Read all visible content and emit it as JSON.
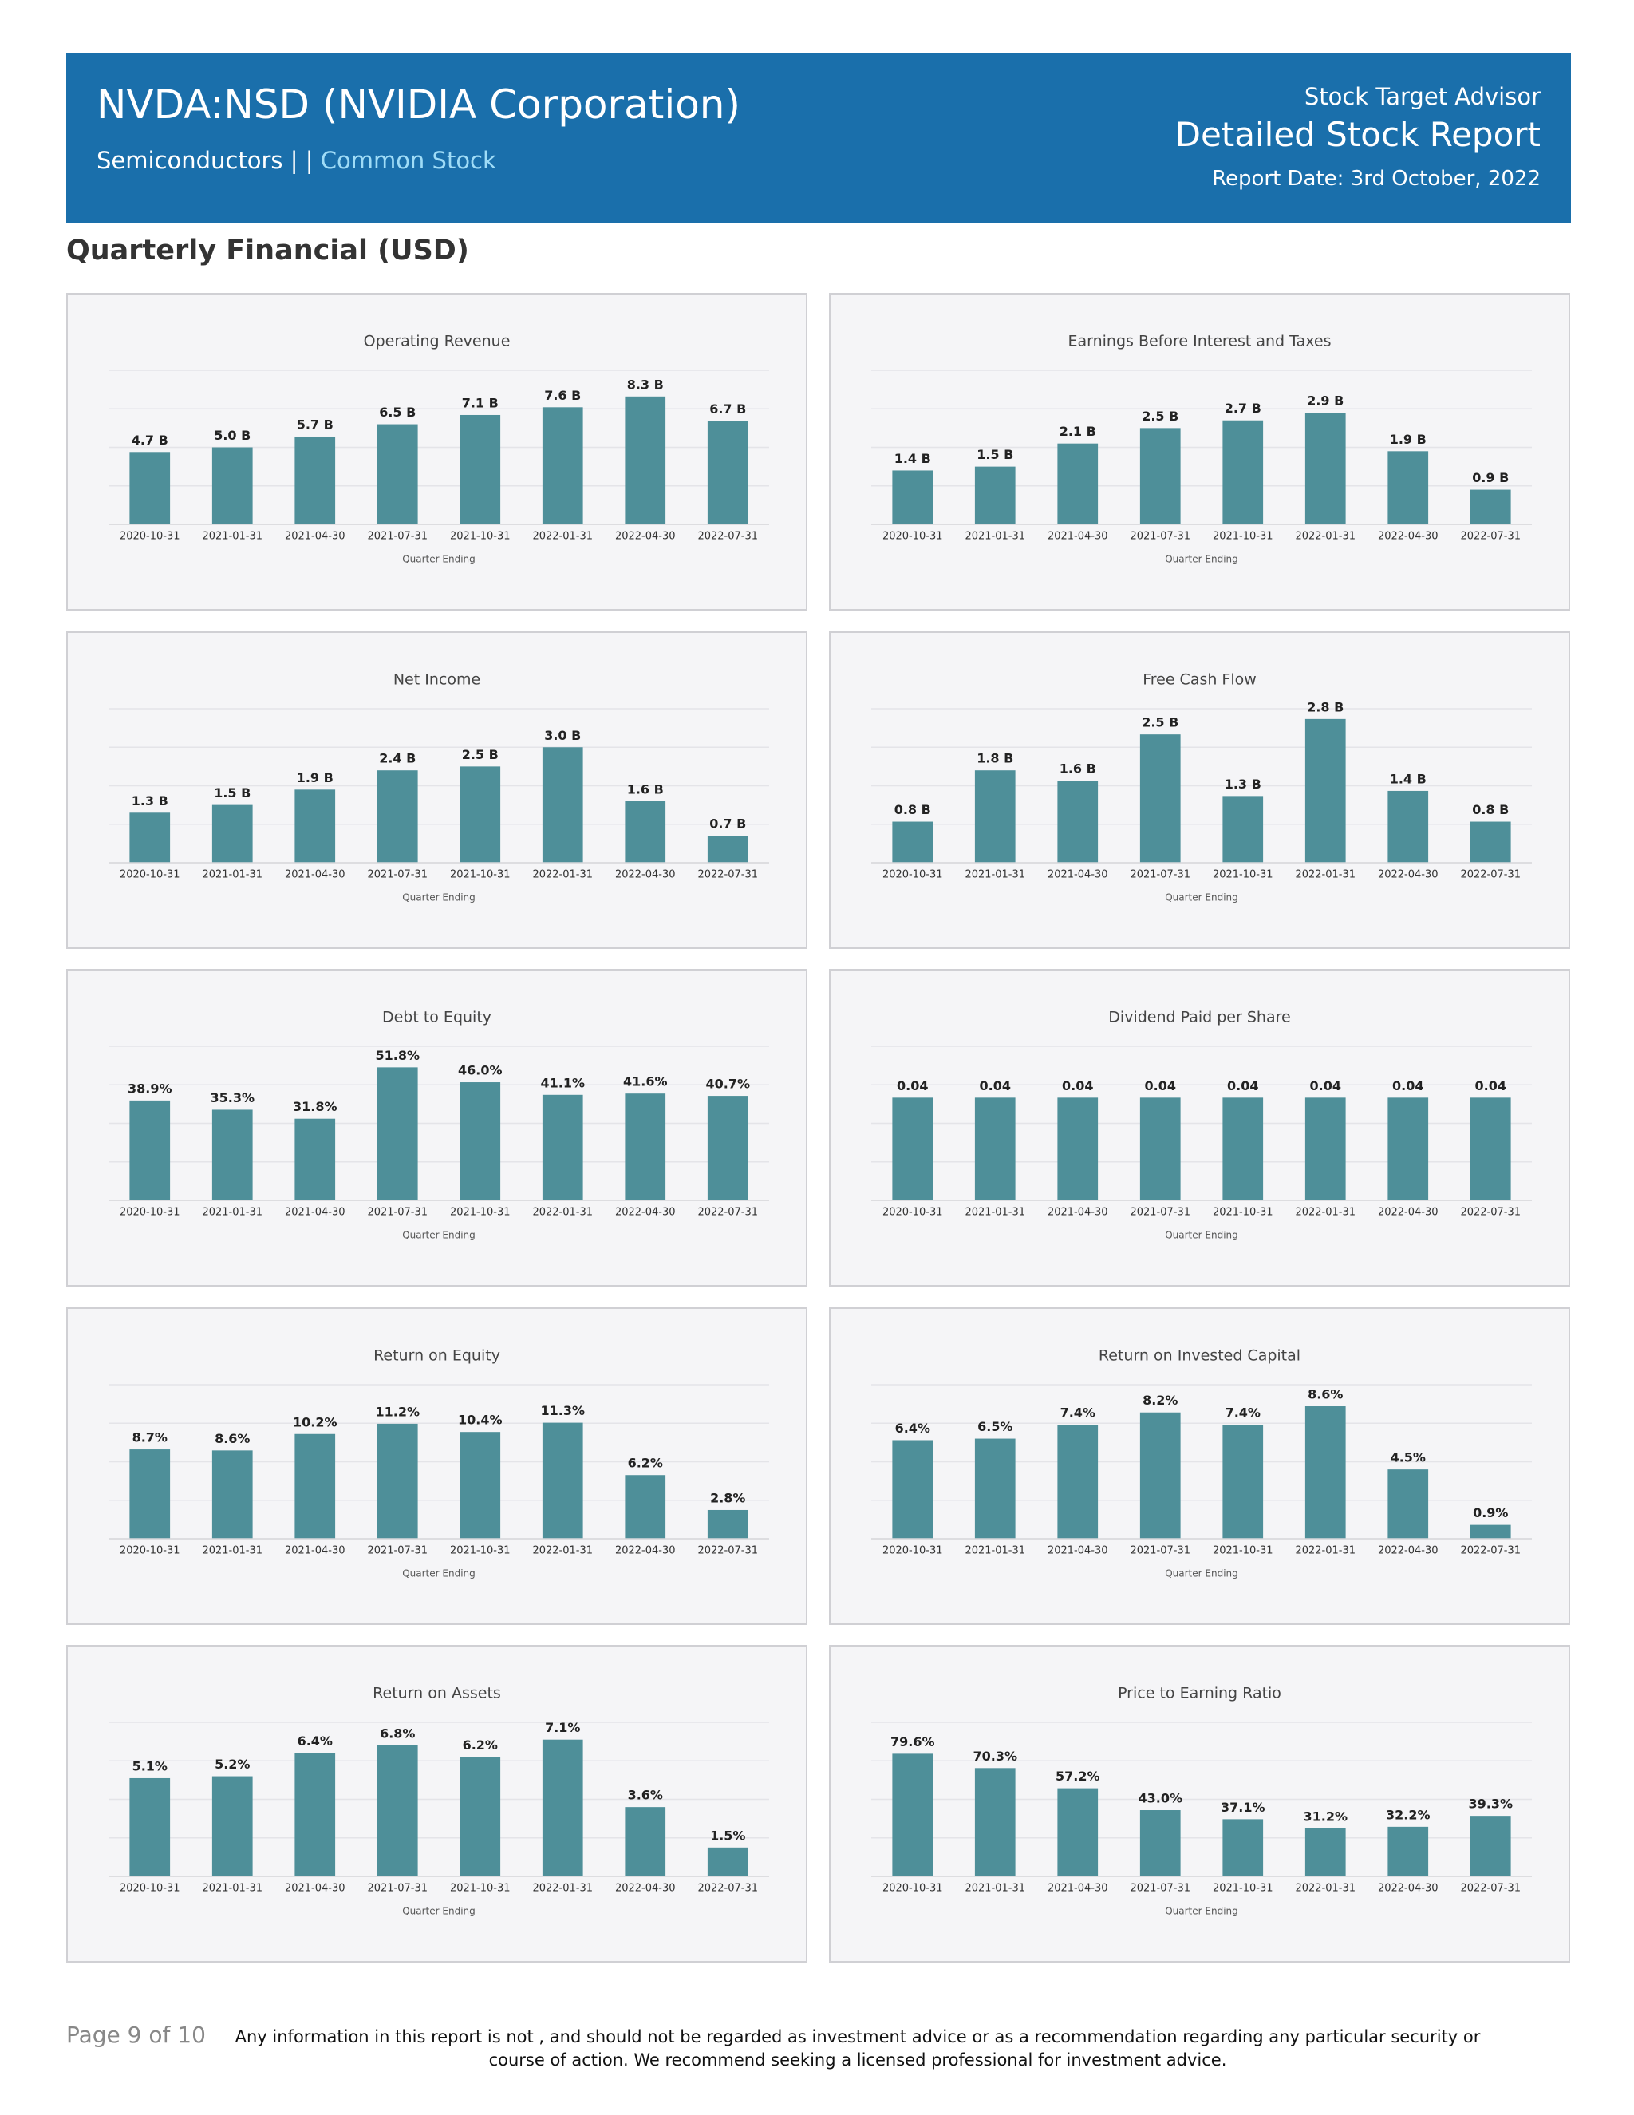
{
  "header": {
    "title": "NVDA:NSD (NVIDIA Corporation)",
    "sector": "Semiconductors | |",
    "stock_type": "Common Stock",
    "brand": "Stock Target Advisor",
    "report_name": "Detailed Stock Report",
    "report_date": "Report Date: 3rd October, 2022"
  },
  "section_title": "Quarterly Financial (USD)",
  "footer": {
    "page": "Page 9 of 10",
    "disclaimer": "Any information in this report is not , and should not be regarded as investment advice or as a recommendation regarding any particular security or course of action. We recommend seeking a licensed professional for investment advice."
  },
  "chart_data": [
    {
      "type": "bar",
      "title": "Operating Revenue",
      "x_label": "Quarter Ending",
      "color": "#4e8f99",
      "categories": [
        "2020-10-31",
        "2021-01-31",
        "2021-04-30",
        "2021-07-31",
        "2021-10-31",
        "2022-01-31",
        "2022-04-30",
        "2022-07-31"
      ],
      "values": [
        4.7,
        5.0,
        5.7,
        6.5,
        7.1,
        7.6,
        8.3,
        6.7
      ],
      "value_labels": [
        "4.7 B",
        "5.0 B",
        "5.7 B",
        "6.5 B",
        "7.1 B",
        "7.6 B",
        "8.3 B",
        "6.7 B"
      ],
      "ylim": [
        0,
        10
      ]
    },
    {
      "type": "bar",
      "title": "Earnings Before Interest and Taxes",
      "x_label": "Quarter Ending",
      "color": "#4e8f99",
      "categories": [
        "2020-10-31",
        "2021-01-31",
        "2021-04-30",
        "2021-07-31",
        "2021-10-31",
        "2022-01-31",
        "2022-04-30",
        "2022-07-31"
      ],
      "values": [
        1.4,
        1.5,
        2.1,
        2.5,
        2.7,
        2.9,
        1.9,
        0.9
      ],
      "value_labels": [
        "1.4 B",
        "1.5 B",
        "2.1 B",
        "2.5 B",
        "2.7 B",
        "2.9 B",
        "1.9 B",
        "0.9 B"
      ],
      "ylim": [
        0,
        4
      ]
    },
    {
      "type": "bar",
      "title": "Net Income",
      "x_label": "Quarter Ending",
      "color": "#4e8f99",
      "categories": [
        "2020-10-31",
        "2021-01-31",
        "2021-04-30",
        "2021-07-31",
        "2021-10-31",
        "2022-01-31",
        "2022-04-30",
        "2022-07-31"
      ],
      "values": [
        1.3,
        1.5,
        1.9,
        2.4,
        2.5,
        3.0,
        1.6,
        0.7
      ],
      "value_labels": [
        "1.3 B",
        "1.5 B",
        "1.9 B",
        "2.4 B",
        "2.5 B",
        "3.0 B",
        "1.6 B",
        "0.7 B"
      ],
      "ylim": [
        0,
        4
      ]
    },
    {
      "type": "bar",
      "title": "Free Cash Flow",
      "x_label": "Quarter Ending",
      "color": "#4e8f99",
      "categories": [
        "2020-10-31",
        "2021-01-31",
        "2021-04-30",
        "2021-07-31",
        "2021-10-31",
        "2022-01-31",
        "2022-04-30",
        "2022-07-31"
      ],
      "values": [
        0.8,
        1.8,
        1.6,
        2.5,
        1.3,
        2.8,
        1.4,
        0.8
      ],
      "value_labels": [
        "0.8 B",
        "1.8 B",
        "1.6 B",
        "2.5 B",
        "1.3 B",
        "2.8 B",
        "1.4 B",
        "0.8 B"
      ],
      "ylim": [
        0,
        3
      ]
    },
    {
      "type": "bar",
      "title": "Debt to Equity",
      "x_label": "Quarter Ending",
      "color": "#4e8f99",
      "categories": [
        "2020-10-31",
        "2021-01-31",
        "2021-04-30",
        "2021-07-31",
        "2021-10-31",
        "2022-01-31",
        "2022-04-30",
        "2022-07-31"
      ],
      "values": [
        38.9,
        35.3,
        31.8,
        51.8,
        46.0,
        41.1,
        41.6,
        40.7
      ],
      "value_labels": [
        "38.9%",
        "35.3%",
        "31.8%",
        "51.8%",
        "46.0%",
        "41.1%",
        "41.6%",
        "40.7%"
      ],
      "ylim": [
        0,
        60
      ]
    },
    {
      "type": "bar",
      "title": "Dividend Paid per Share",
      "x_label": "Quarter Ending",
      "color": "#4e8f99",
      "categories": [
        "2020-10-31",
        "2021-01-31",
        "2021-04-30",
        "2021-07-31",
        "2021-10-31",
        "2022-01-31",
        "2022-04-30",
        "2022-07-31"
      ],
      "values": [
        0.04,
        0.04,
        0.04,
        0.04,
        0.04,
        0.04,
        0.04,
        0.04
      ],
      "ylim": [
        0,
        0.06
      ]
    },
    {
      "type": "bar",
      "title": "Return on Equity",
      "x_label": "Quarter Ending",
      "color": "#4e8f99",
      "categories": [
        "2020-10-31",
        "2021-01-31",
        "2021-04-30",
        "2021-07-31",
        "2021-10-31",
        "2022-01-31",
        "2022-04-30",
        "2022-07-31"
      ],
      "values": [
        8.7,
        8.6,
        10.2,
        11.2,
        10.4,
        11.3,
        6.2,
        2.8
      ],
      "value_labels": [
        "8.7%",
        "8.6%",
        "10.2%",
        "11.2%",
        "10.4%",
        "11.3%",
        "6.2%",
        "2.8%"
      ],
      "ylim": [
        0,
        15
      ]
    },
    {
      "type": "bar",
      "title": "Return on Invested Capital",
      "x_label": "Quarter Ending",
      "color": "#4e8f99",
      "categories": [
        "2020-10-31",
        "2021-01-31",
        "2021-04-30",
        "2021-07-31",
        "2021-10-31",
        "2022-01-31",
        "2022-04-30",
        "2022-07-31"
      ],
      "values": [
        6.4,
        6.5,
        7.4,
        8.2,
        7.4,
        8.6,
        4.5,
        0.9
      ],
      "value_labels": [
        "6.4%",
        "6.5%",
        "7.4%",
        "8.2%",
        "7.4%",
        "8.6%",
        "4.5%",
        "0.9%"
      ],
      "ylim": [
        0,
        10
      ]
    },
    {
      "type": "bar",
      "title": "Return on Assets",
      "x_label": "Quarter Ending",
      "color": "#4e8f99",
      "categories": [
        "2020-10-31",
        "2021-01-31",
        "2021-04-30",
        "2021-07-31",
        "2021-10-31",
        "2022-01-31",
        "2022-04-30",
        "2022-07-31"
      ],
      "values": [
        5.1,
        5.2,
        6.4,
        6.8,
        6.2,
        7.1,
        3.6,
        1.5
      ],
      "value_labels": [
        "5.1%",
        "5.2%",
        "6.4%",
        "6.8%",
        "6.2%",
        "7.1%",
        "3.6%",
        "1.5%"
      ],
      "ylim": [
        0,
        8
      ]
    },
    {
      "type": "bar",
      "title": "Price to Earning Ratio",
      "x_label": "Quarter Ending",
      "color": "#4e8f99",
      "categories": [
        "2020-10-31",
        "2021-01-31",
        "2021-04-30",
        "2021-07-31",
        "2021-10-31",
        "2022-01-31",
        "2022-04-30",
        "2022-07-31"
      ],
      "values": [
        79.6,
        70.3,
        57.2,
        43.0,
        37.1,
        31.2,
        32.2,
        39.3
      ],
      "value_labels": [
        "79.6%",
        "70.3%",
        "57.2%",
        "43.0%",
        "37.1%",
        "31.2%",
        "32.2%",
        "39.3%"
      ],
      "ylim": [
        0,
        100
      ]
    }
  ]
}
